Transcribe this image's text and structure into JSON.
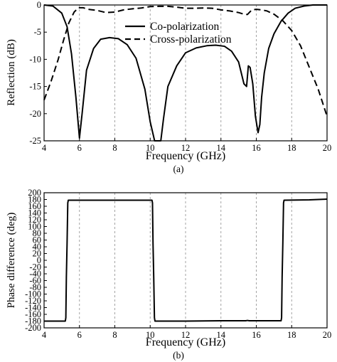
{
  "chart_data": [
    {
      "type": "line",
      "caption": "(a)",
      "xlabel": "Frequency (GHz)",
      "ylabel": "Reflection (dB)",
      "xlim": [
        4,
        20
      ],
      "ylim": [
        -25,
        0
      ],
      "xticks": [
        "4",
        "6",
        "8",
        "10",
        "12",
        "14",
        "16",
        "18",
        "20"
      ],
      "yticks": [
        "0",
        "-5",
        "-10",
        "-15",
        "-20",
        "-25"
      ],
      "grid": "vertical-dashed",
      "legend_position": "top-right",
      "series": [
        {
          "name": "Co-polarization",
          "style": "solid",
          "x": [
            4,
            4.5,
            5.0,
            5.3,
            5.55,
            5.8,
            6.0,
            6.15,
            6.4,
            6.8,
            7.2,
            7.7,
            8.2,
            8.7,
            9.2,
            9.7,
            10.0,
            10.25,
            10.4,
            10.6,
            10.75,
            11.0,
            11.5,
            12.0,
            12.6,
            13.2,
            13.7,
            14.2,
            14.6,
            15.0,
            15.3,
            15.45,
            15.55,
            15.65,
            15.8,
            15.95,
            16.1,
            16.2,
            16.3,
            16.45,
            16.7,
            17.0,
            17.4,
            17.8,
            18.2,
            18.7,
            19.2,
            19.6,
            20
          ],
          "y": [
            0,
            -0.2,
            -1.5,
            -4.0,
            -9.0,
            -17.0,
            -24.5,
            -20.0,
            -12.0,
            -8.0,
            -6.3,
            -6.0,
            -6.2,
            -7.3,
            -9.8,
            -15.5,
            -21.5,
            -25.0,
            -25.0,
            -25.0,
            -21.0,
            -15.0,
            -11.2,
            -8.8,
            -7.9,
            -7.5,
            -7.4,
            -7.6,
            -8.5,
            -10.5,
            -14.5,
            -15.0,
            -11.2,
            -11.5,
            -14.5,
            -20.5,
            -23.5,
            -22.0,
            -17.0,
            -12.5,
            -8.0,
            -5.3,
            -3.0,
            -1.5,
            -0.6,
            -0.2,
            0,
            0,
            0
          ]
        },
        {
          "name": "Cross-polarization",
          "style": "dashed",
          "x": [
            4,
            4.4,
            4.8,
            5.1,
            5.4,
            5.7,
            5.95,
            6.2,
            6.5,
            7.0,
            7.5,
            8.0,
            8.5,
            9.0,
            9.5,
            10.0,
            10.5,
            11.0,
            11.5,
            12.0,
            12.5,
            13.0,
            13.5,
            14.0,
            14.5,
            15.0,
            15.3,
            15.5,
            15.6,
            15.75,
            16.0,
            16.3,
            16.6,
            17.0,
            17.5,
            18.0,
            18.5,
            19.0,
            19.5,
            20
          ],
          "y": [
            -17.5,
            -14.0,
            -10.0,
            -6.5,
            -3.3,
            -1.3,
            -0.5,
            -0.5,
            -0.8,
            -1.0,
            -1.4,
            -1.3,
            -0.9,
            -0.7,
            -0.55,
            -0.3,
            -0.25,
            -0.25,
            -0.4,
            -0.6,
            -0.6,
            -0.55,
            -0.6,
            -0.9,
            -1.1,
            -1.4,
            -1.7,
            -1.75,
            -1.4,
            -0.9,
            -0.8,
            -0.9,
            -1.1,
            -1.7,
            -2.9,
            -4.7,
            -7.5,
            -11.5,
            -15.5,
            -20.5
          ]
        }
      ]
    },
    {
      "type": "line",
      "caption": "(b)",
      "xlabel": "Frequency (GHz)",
      "ylabel": "Phase difference (deg)",
      "xlim": [
        4,
        20
      ],
      "ylim": [
        -200,
        200
      ],
      "xticks": [
        "4",
        "6",
        "8",
        "10",
        "12",
        "14",
        "16",
        "18",
        "20"
      ],
      "yticks": [
        "200",
        "180",
        "160",
        "140",
        "120",
        "100",
        "80",
        "60",
        "40",
        "20",
        "0",
        "-20",
        "-40",
        "-60",
        "-80",
        "-100",
        "-120",
        "-140",
        "-160",
        "-180",
        "-200"
      ],
      "grid": "vertical-dashed",
      "series": [
        {
          "style": "solid",
          "x": [
            4,
            5.2,
            5.23,
            5.26,
            5.3,
            5.34,
            5.37,
            7.0,
            9.0,
            10.1,
            10.13,
            10.16,
            10.2,
            10.24,
            10.27,
            12.0,
            14.0,
            15.4,
            15.5,
            15.6,
            17.4,
            17.43,
            17.46,
            17.5,
            17.54,
            17.57,
            19.0,
            20
          ],
          "y": [
            -180,
            -180,
            -170,
            -50,
            50,
            170,
            178,
            178,
            178,
            178,
            170,
            50,
            -50,
            -170,
            -180,
            -180,
            -179,
            -179,
            -178,
            -179,
            -179,
            -170,
            -50,
            50,
            170,
            178,
            179,
            181
          ]
        }
      ]
    }
  ]
}
